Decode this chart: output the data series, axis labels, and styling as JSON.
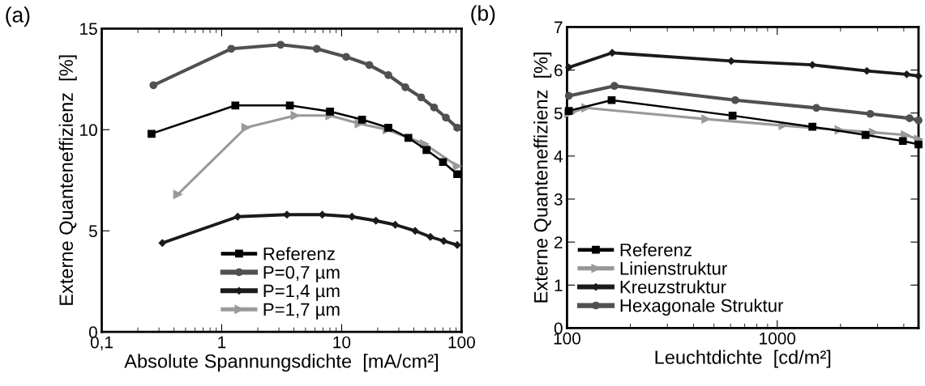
{
  "chart_data": [
    {
      "type": "line",
      "xlabel": "Absolute Spannungsdichte  [mA/cm²]",
      "ylabel": "Externe Quanteneffizienz  [%]",
      "annotations": [
        "(a)"
      ],
      "log": "x",
      "xlim": [
        0.1,
        100
      ],
      "ylim": [
        0,
        15
      ],
      "xticks": [
        {
          "value": 0.1,
          "label": "0,1"
        },
        1,
        10,
        100
      ],
      "yticks": [
        0,
        5,
        10,
        15
      ],
      "grid": false,
      "legend": "bottom",
      "line_style": "solid",
      "series": [
        {
          "name": "Referenz",
          "color": "#000000",
          "marker": "square",
          "x": [
            0.26,
            1.3,
            3.7,
            8.0,
            14.8,
            24.5,
            36,
            51,
            70,
            92
          ],
          "values": [
            9.8,
            11.2,
            11.2,
            10.9,
            10.5,
            10.1,
            9.6,
            9.0,
            8.4,
            7.8
          ]
        },
        {
          "name": "P=0,7 µm",
          "color": "#505050",
          "marker": "circle",
          "x": [
            0.27,
            1.2,
            3.1,
            6.2,
            10.9,
            17,
            24.5,
            34,
            46,
            59,
            74,
            92
          ],
          "values": [
            12.2,
            14.0,
            14.2,
            14.0,
            13.6,
            13.2,
            12.7,
            12.1,
            11.6,
            11.1,
            10.6,
            10.1
          ]
        },
        {
          "name": "P=1,4 µm",
          "color": "#1a1a1a",
          "marker": "diamond",
          "x": [
            0.32,
            1.36,
            3.5,
            6.9,
            12.2,
            19.3,
            28,
            41,
            55,
            71,
            92
          ],
          "values": [
            4.4,
            5.7,
            5.8,
            5.8,
            5.7,
            5.5,
            5.3,
            5.0,
            4.7,
            4.5,
            4.3
          ]
        },
        {
          "name": "P=1,7 µm",
          "color": "#999999",
          "marker": "triangle",
          "x": [
            0.43,
            1.59,
            4.1,
            8.0,
            14,
            24,
            49,
            92
          ],
          "values": [
            6.8,
            10.1,
            10.7,
            10.7,
            10.3,
            10.0,
            9.3,
            8.2
          ]
        }
      ]
    },
    {
      "type": "line",
      "xlabel": "Leuchtdichte  [cd/m²]",
      "ylabel": "Externe Quanteneffizienz  [%]",
      "annotations": [
        "(b)"
      ],
      "log": "x",
      "xlim": [
        100,
        4700
      ],
      "ylim": [
        0,
        7
      ],
      "xticks": [
        100,
        1000
      ],
      "yticks": [
        0,
        1,
        2,
        3,
        4,
        5,
        6,
        7
      ],
      "grid": false,
      "legend": "bottom left",
      "line_style": "solid",
      "series": [
        {
          "name": "Referenz",
          "color": "#000000",
          "marker": "square",
          "x": [
            102,
            163,
            613,
            1470,
            2630,
            3960,
            4700
          ],
          "values": [
            5.05,
            5.3,
            4.94,
            4.68,
            4.49,
            4.35,
            4.27
          ]
        },
        {
          "name": "Linienstruktur",
          "color": "#999999",
          "marker": "triangle",
          "x": [
            102,
            123,
            458,
            1066,
            1970,
            2870,
            4070,
            4700
          ],
          "values": [
            4.99,
            5.12,
            4.86,
            4.71,
            4.61,
            4.55,
            4.49,
            4.39
          ]
        },
        {
          "name": "Kreuzstruktur",
          "color": "#1a1a1a",
          "marker": "diamond",
          "x": [
            102,
            164,
            604,
            1470,
            2670,
            4130,
            4700
          ],
          "values": [
            6.06,
            6.4,
            6.21,
            6.12,
            5.98,
            5.9,
            5.86
          ]
        },
        {
          "name": "Hexagonale Struktur",
          "color": "#505050",
          "marker": "circle",
          "x": [
            102,
            168,
            631,
            1535,
            2770,
            4260,
            4700
          ],
          "values": [
            5.4,
            5.63,
            5.3,
            5.12,
            4.98,
            4.88,
            4.83
          ]
        }
      ]
    }
  ]
}
